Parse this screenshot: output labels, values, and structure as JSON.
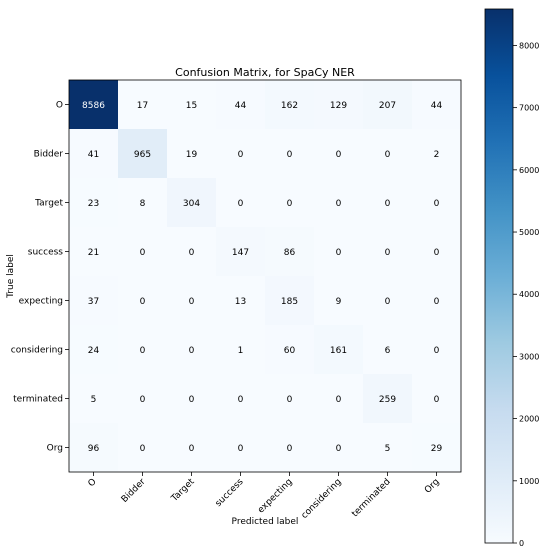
{
  "chart_data": {
    "type": "heatmap",
    "title": "Confusion Matrix, for SpaCy NER",
    "xlabel": "Predicted label",
    "ylabel": "True label",
    "x_categories": [
      "O",
      "Bidder",
      "Target",
      "success",
      "expecting",
      "considering",
      "terminated",
      "Org"
    ],
    "y_categories": [
      "O",
      "Bidder",
      "Target",
      "success",
      "expecting",
      "considering",
      "terminated",
      "Org"
    ],
    "values": [
      [
        8586,
        17,
        15,
        44,
        162,
        129,
        207,
        44
      ],
      [
        41,
        965,
        19,
        0,
        0,
        0,
        0,
        2
      ],
      [
        23,
        8,
        304,
        0,
        0,
        0,
        0,
        0
      ],
      [
        21,
        0,
        0,
        147,
        86,
        0,
        0,
        0
      ],
      [
        37,
        0,
        0,
        13,
        185,
        9,
        0,
        0
      ],
      [
        24,
        0,
        0,
        1,
        60,
        161,
        6,
        0
      ],
      [
        5,
        0,
        0,
        0,
        0,
        0,
        259,
        0
      ],
      [
        96,
        0,
        0,
        0,
        0,
        0,
        5,
        29
      ]
    ],
    "colorbar": {
      "range": [
        0,
        8586
      ],
      "ticks": [
        0,
        1000,
        2000,
        3000,
        4000,
        5000,
        6000,
        7000,
        8000
      ],
      "colors": [
        "#f7fbff",
        "#08306b"
      ]
    },
    "text_colors": {
      "light": "#ffffff",
      "dark": "#000000"
    },
    "grid": false
  }
}
